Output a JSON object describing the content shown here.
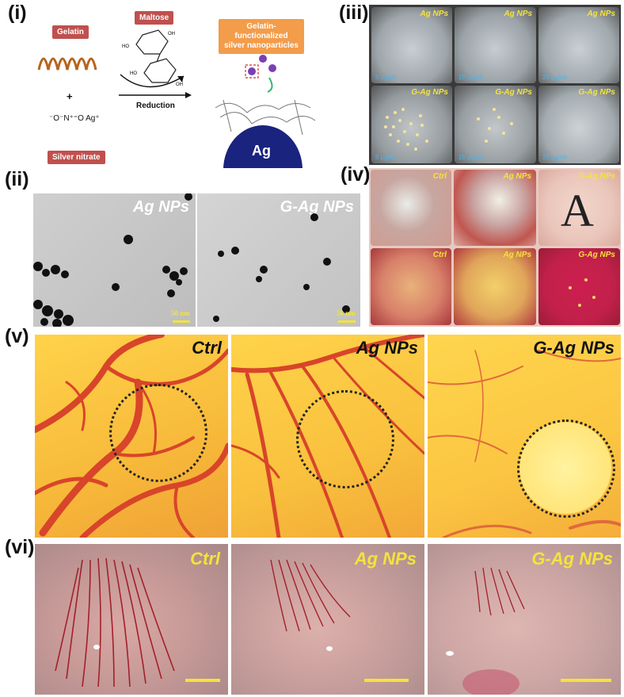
{
  "panels": {
    "i": "(i)",
    "ii": "(ii)",
    "iii": "(iii)",
    "iv": "(iv)",
    "v": "(v)",
    "vi": "(vi)"
  },
  "synthesis": {
    "gelatin": "Gelatin",
    "plus": "+",
    "silver_nitrate": "Silver nitrate",
    "maltose": "Maltose",
    "reduction": "Reduction",
    "product": "Gelatin-functionalized silver nanoparticles",
    "ag": "Ag",
    "nitrate_formula": "⁻O⁻N⁺⁼O  Ag⁺"
  },
  "panel_iii": {
    "top_label": "Ag NPs",
    "bottom_label": "G-Ag NPs",
    "concentrations": [
      "5 μg/ml",
      "10 μg/ml",
      "25 μg/ml"
    ]
  },
  "panel_ii": {
    "left_label": "Ag NPs",
    "right_label": "G-Ag NPs",
    "scale": "50 nm"
  },
  "panel_iv": {
    "labels": [
      "Ctrl",
      "Ag NPs",
      "G-Ag NPs"
    ],
    "letter": "A"
  },
  "panel_v": {
    "labels": [
      "Ctrl",
      "Ag NPs",
      "G-Ag NPs"
    ]
  },
  "panel_vi": {
    "labels": [
      "Ctrl",
      "Ag NPs",
      "G-Ag NPs"
    ]
  },
  "colors": {
    "tag_red": "#c0504d",
    "tag_orange": "#f39c4a",
    "label_yellow": "#f5e33b",
    "ag_blue": "#1a237e"
  }
}
